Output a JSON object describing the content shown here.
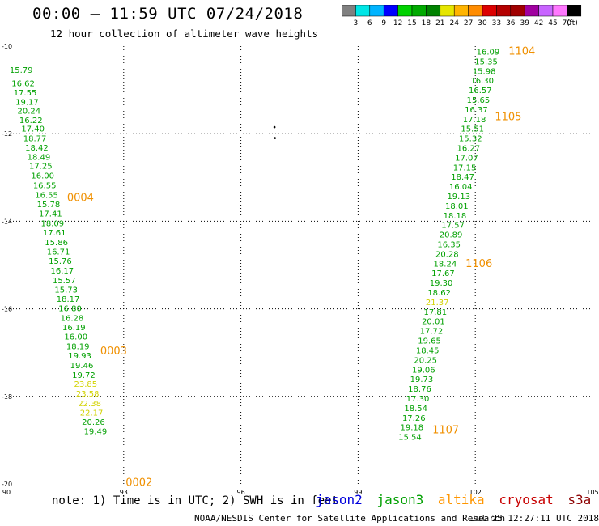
{
  "header": {
    "title": "00:00 – 11:59 UTC 07/24/2018",
    "subtitle": "12 hour collection of altimeter wave heights"
  },
  "color_scale": {
    "colors": [
      "#808080",
      "#00e6e6",
      "#00b4ff",
      "#0000ff",
      "#00d200",
      "#00aa00",
      "#008200",
      "#e6e600",
      "#ffb400",
      "#ff8c00",
      "#dc0000",
      "#b40000",
      "#a00000",
      "#a000a0",
      "#c864ff",
      "#ff78ff",
      "#000000"
    ],
    "labels": [
      "3",
      "6",
      "9",
      "12",
      "15",
      "18",
      "21",
      "24",
      "27",
      "30",
      "33",
      "36",
      "39",
      "42",
      "45",
      "70"
    ],
    "unit": "(ft)"
  },
  "footer": {
    "note": "note: 1) Time is in UTC; 2) SWH is in feet",
    "satellites": [
      {
        "name": "jason2",
        "color": "#0000dc"
      },
      {
        "name": "jason3",
        "color": "#00a000"
      },
      {
        "name": "altika",
        "color": "#ff9600"
      },
      {
        "name": "cryosat",
        "color": "#c80000"
      },
      {
        "name": "s3a",
        "color": "#8c0000"
      }
    ],
    "credit": "NOAA/NESDIS Center for Satellite Applications and Research",
    "timestamp": "Jul 25 12:27:11 UTC 2018"
  },
  "chart_data": {
    "type": "scatter",
    "xlim": [
      90,
      105
    ],
    "ylim": [
      -20,
      -10
    ],
    "xticks": [
      "90",
      "93",
      "96",
      "99",
      "102",
      "105"
    ],
    "yticks": [
      "-10",
      "-12",
      "-14",
      "-16",
      "-18",
      "-20"
    ],
    "grid": true,
    "track_labels": [
      {
        "text": "1104",
        "x": 102.85,
        "y": -10.1
      },
      {
        "text": "1105",
        "x": 102.5,
        "y": -11.6
      },
      {
        "text": "0004",
        "x": 91.55,
        "y": -13.45
      },
      {
        "text": "1106",
        "x": 101.75,
        "y": -14.95
      },
      {
        "text": "0003",
        "x": 92.4,
        "y": -16.95
      },
      {
        "text": "1107",
        "x": 100.9,
        "y": -18.75
      },
      {
        "text": "0002",
        "x": 93.05,
        "y": -19.95
      }
    ],
    "track_west": {
      "labels": [
        "15.79",
        "16.62",
        "17.55",
        "19.17",
        "20.24",
        "16.22",
        "17.40",
        "18.77",
        "18.42",
        "18.49",
        "17.25",
        "16.00",
        "16.55",
        "16.55",
        "15.78",
        "17.41",
        "18.09",
        "17.61",
        "15.86",
        "16.71",
        "15.76",
        "16.17",
        "15.57",
        "15.73",
        "18.17",
        "16.80",
        "16.28",
        "16.19",
        "16.00",
        "18.19",
        "19.93",
        "19.46",
        "19.72",
        "23.85",
        "23.58",
        "22.38",
        "22.17",
        "20.26",
        "19.49"
      ],
      "y": [
        -10.54,
        -10.84,
        -11.05,
        -11.27,
        -11.47,
        -11.68,
        -11.88,
        -12.1,
        -12.31,
        -12.52,
        -12.73,
        -12.95,
        -13.17,
        -13.39,
        -13.6,
        -13.82,
        -14.04,
        -14.25,
        -14.47,
        -14.69,
        -14.9,
        -15.12,
        -15.34,
        -15.55,
        -15.77,
        -15.98,
        -16.2,
        -16.41,
        -16.63,
        -16.85,
        -17.06,
        -17.28,
        -17.5,
        -17.71,
        -17.93,
        -18.15,
        -18.36,
        -18.58,
        -18.79
      ],
      "x": [
        90.08,
        90.13,
        90.18,
        90.23,
        90.28,
        90.33,
        90.38,
        90.43,
        90.48,
        90.53,
        90.58,
        90.63,
        90.68,
        90.73,
        90.78,
        90.83,
        90.88,
        90.93,
        90.98,
        91.03,
        91.08,
        91.13,
        91.18,
        91.23,
        91.28,
        91.33,
        91.38,
        91.43,
        91.48,
        91.53,
        91.58,
        91.63,
        91.68,
        91.73,
        91.78,
        91.83,
        91.88,
        91.93,
        91.98
      ]
    },
    "track_east": {
      "labels": [
        "16.09",
        "15.35",
        "15.98",
        "16.30",
        "16.57",
        "15.65",
        "16.37",
        "17.18",
        "15.51",
        "15.32",
        "16.27",
        "17.07",
        "17.15",
        "18.47",
        "16.04",
        "19.13",
        "18.01",
        "18.18",
        "17.57",
        "20.89",
        "16.35",
        "20.28",
        "18.24",
        "17.67",
        "19.30",
        "18.62",
        "21.37",
        "17.81",
        "20.01",
        "17.72",
        "19.65",
        "18.45",
        "20.25",
        "19.06",
        "19.73",
        "18.76",
        "17.30",
        "18.54",
        "17.26",
        "19.18",
        "15.54"
      ],
      "y": [
        -10.12,
        -10.34,
        -10.56,
        -10.78,
        -11.0,
        -11.22,
        -11.44,
        -11.66,
        -11.88,
        -12.1,
        -12.32,
        -12.54,
        -12.76,
        -12.98,
        -13.2,
        -13.42,
        -13.64,
        -13.86,
        -14.08,
        -14.3,
        -14.52,
        -14.74,
        -14.96,
        -15.18,
        -15.4,
        -15.62,
        -15.84,
        -16.06,
        -16.28,
        -16.5,
        -16.72,
        -16.94,
        -17.16,
        -17.38,
        -17.6,
        -17.82,
        -18.04,
        -18.26,
        -18.48,
        -18.7,
        -18.92
      ],
      "x": [
        102.03,
        101.98,
        101.93,
        101.88,
        101.83,
        101.78,
        101.73,
        101.68,
        101.63,
        101.58,
        101.53,
        101.48,
        101.43,
        101.38,
        101.33,
        101.28,
        101.23,
        101.18,
        101.13,
        101.08,
        101.03,
        100.98,
        100.93,
        100.88,
        100.83,
        100.78,
        100.73,
        100.68,
        100.63,
        100.58,
        100.53,
        100.48,
        100.43,
        100.38,
        100.33,
        100.28,
        100.23,
        100.18,
        100.13,
        100.08,
        100.03
      ]
    },
    "island_dots": [
      {
        "x": 96.86,
        "y": -11.85
      },
      {
        "x": 96.87,
        "y": -12.1
      }
    ]
  }
}
